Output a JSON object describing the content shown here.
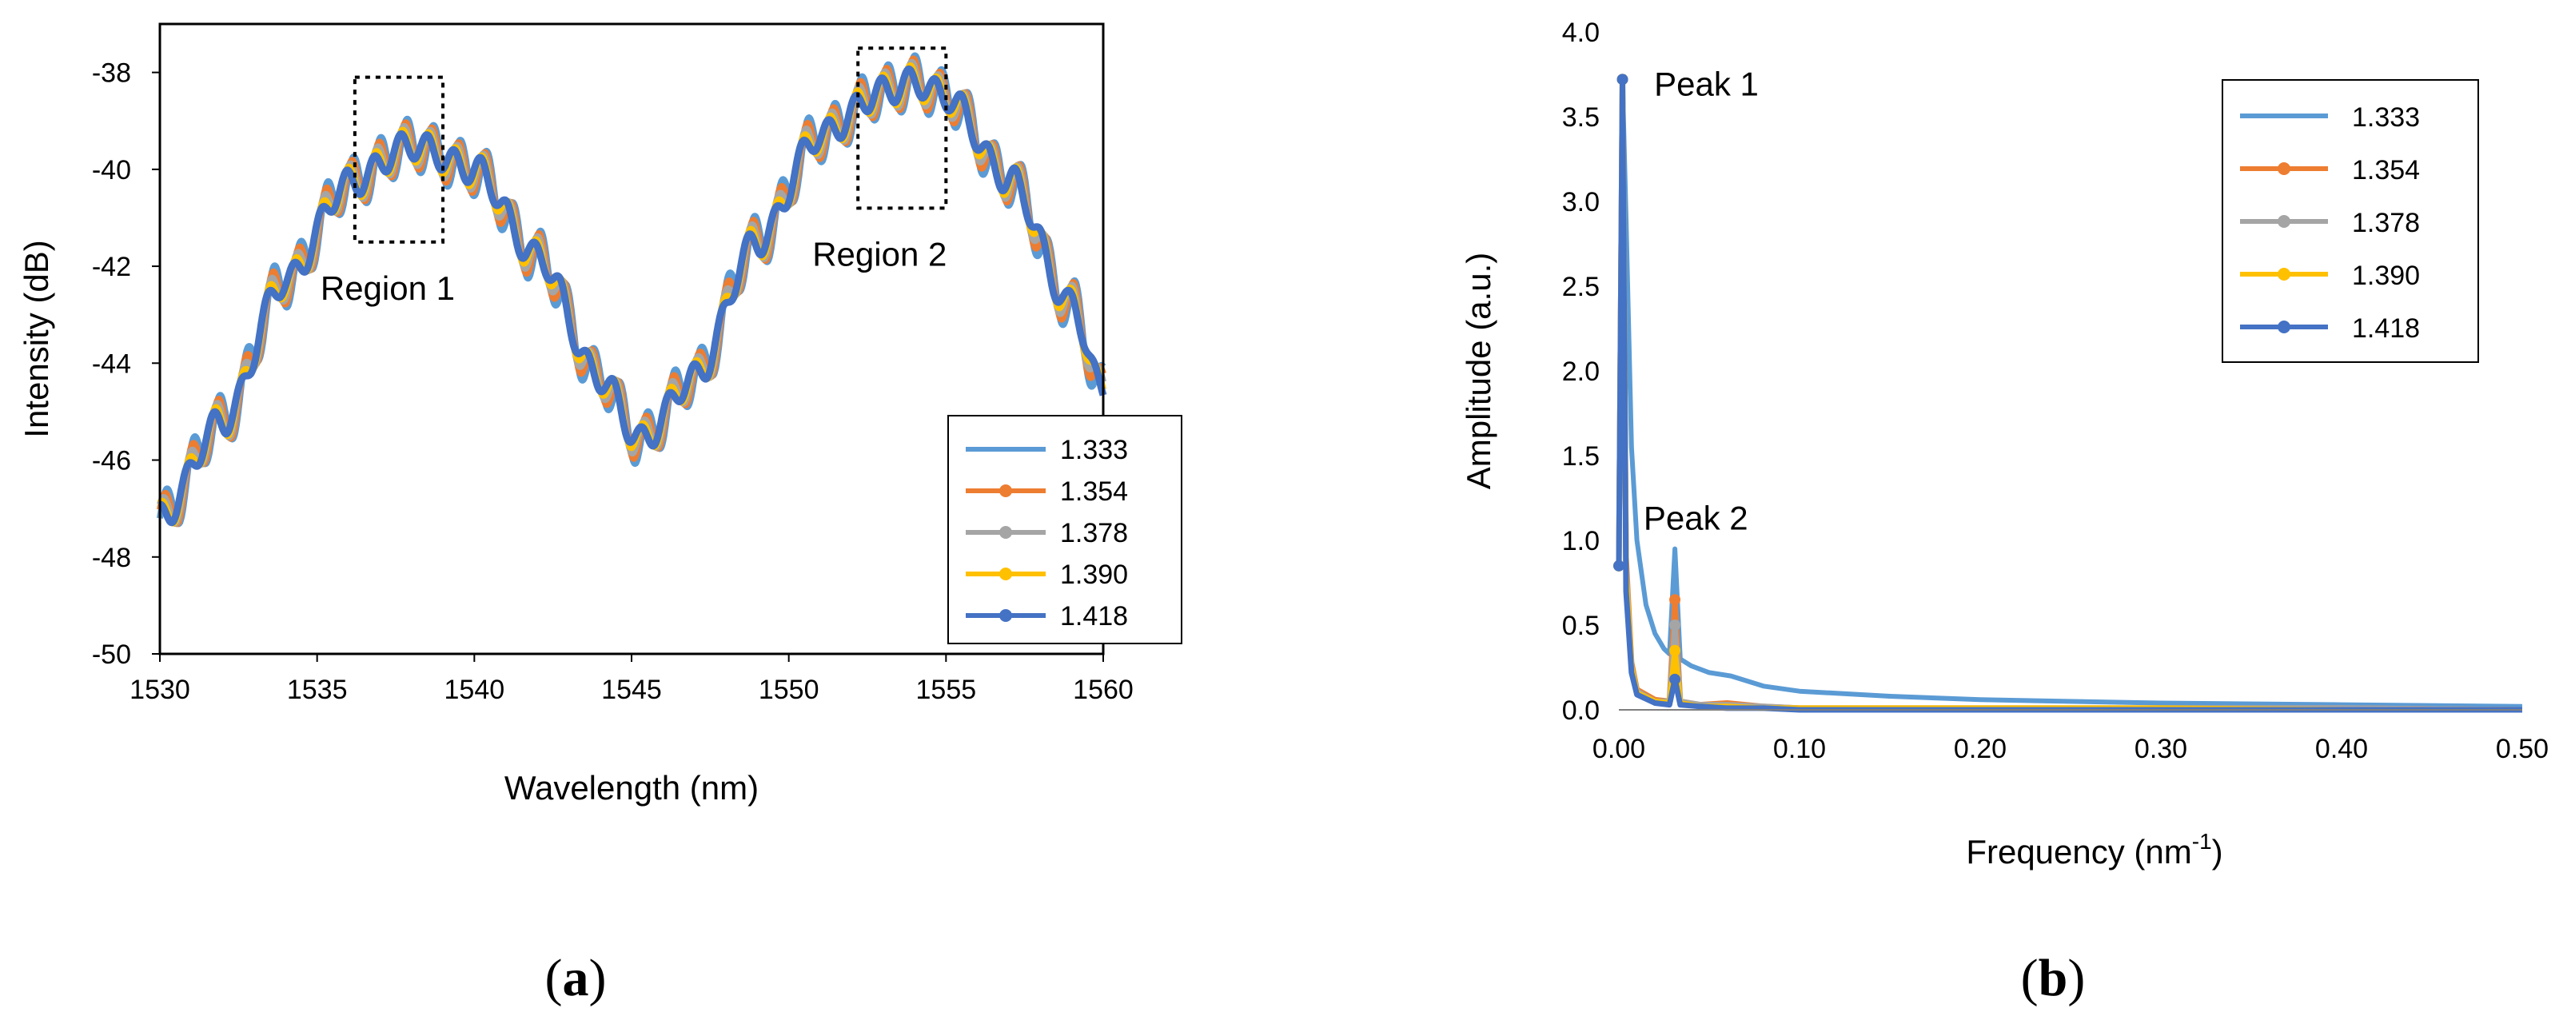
{
  "chart_data": [
    {
      "type": "line",
      "panel": "a",
      "caption_open": "(",
      "caption_letter": "a",
      "caption_close": ")",
      "xlabel": "Wavelength (nm)",
      "ylabel": "Intensity (dB)",
      "xlim": [
        1530,
        1560
      ],
      "ylim": [
        -50,
        -37
      ],
      "xticks": [
        1530,
        1535,
        1540,
        1545,
        1550,
        1555,
        1560
      ],
      "yticks": [
        -50,
        -48,
        -46,
        -44,
        -42,
        -40,
        -38
      ],
      "legend_position": "bottom-right",
      "series": [
        {
          "name": "1.333",
          "color": "#5B9BD5",
          "offset": 0.0
        },
        {
          "name": "1.354",
          "color": "#ED7D31",
          "offset": 0.12
        },
        {
          "name": "1.378",
          "color": "#A5A5A5",
          "offset": 0.24
        },
        {
          "name": "1.390",
          "color": "#FFC000",
          "offset": 0.36
        },
        {
          "name": "1.418",
          "color": "#4472C4",
          "offset": 0.48
        }
      ],
      "envelope": {
        "x": [
          1530,
          1532,
          1534,
          1536,
          1538,
          1540,
          1542,
          1544,
          1545.3,
          1547,
          1549,
          1551,
          1553,
          1554,
          1555,
          1557,
          1559,
          1560
        ],
        "y": [
          -47.2,
          -45.2,
          -42.3,
          -40.3,
          -39.5,
          -40.0,
          -41.8,
          -44.3,
          -45.6,
          -44.3,
          -41.5,
          -39.3,
          -38.4,
          -38.2,
          -38.5,
          -40.2,
          -42.8,
          -44.6
        ]
      },
      "ripple_amplitude_db": 0.55,
      "ripple_period_nm": 0.85,
      "regions": [
        {
          "label": "Region 1",
          "x": [
            1536.2,
            1539.0
          ],
          "y": [
            -41.5,
            -38.1
          ]
        },
        {
          "label": "Region 2",
          "x": [
            1552.2,
            1555.0
          ],
          "y": [
            -40.8,
            -37.5
          ]
        }
      ]
    },
    {
      "type": "line",
      "panel": "b",
      "caption_open": "(",
      "caption_letter": "b",
      "caption_close": ")",
      "xlabel": "Frequency (nm",
      "xlabel_sup": "-1",
      "xlabel_tail": ")",
      "ylabel": "Amplitude (a.u.)",
      "xlim": [
        0,
        0.5
      ],
      "ylim": [
        0,
        4.0
      ],
      "xticks": [
        "0.00",
        "0.10",
        "0.20",
        "0.30",
        "0.40",
        "0.50"
      ],
      "yticks": [
        "0.0",
        "0.5",
        "1.0",
        "1.5",
        "2.0",
        "2.5",
        "3.0",
        "3.5",
        "4.0"
      ],
      "legend_position": "top-right",
      "annotations": [
        {
          "text": "Peak 1",
          "x": 0.016,
          "y": 3.72
        },
        {
          "text": "Peak 2",
          "x": 0.011,
          "y": 1.14
        }
      ],
      "series": [
        {
          "name": "1.333",
          "color": "#5B9BD5",
          "peak1": 3.72,
          "peak2": 0.95,
          "x": [
            0.0,
            0.002,
            0.004,
            0.007,
            0.01,
            0.015,
            0.02,
            0.025,
            0.028,
            0.031,
            0.034,
            0.04,
            0.05,
            0.062,
            0.08,
            0.1,
            0.15,
            0.2,
            0.3,
            0.4,
            0.5
          ],
          "y": [
            0.85,
            3.72,
            2.9,
            1.55,
            1.0,
            0.62,
            0.45,
            0.36,
            0.33,
            0.95,
            0.3,
            0.26,
            0.22,
            0.2,
            0.14,
            0.11,
            0.08,
            0.06,
            0.04,
            0.03,
            0.02
          ]
        },
        {
          "name": "1.354",
          "color": "#ED7D31",
          "peak1": 3.72,
          "peak2": 0.65,
          "x": [
            0.0,
            0.002,
            0.004,
            0.007,
            0.01,
            0.02,
            0.028,
            0.031,
            0.034,
            0.045,
            0.06,
            0.08,
            0.1,
            0.2,
            0.3,
            0.4,
            0.5
          ],
          "y": [
            0.85,
            3.72,
            0.9,
            0.28,
            0.12,
            0.06,
            0.05,
            0.65,
            0.05,
            0.03,
            0.04,
            0.02,
            0.01,
            0.01,
            0.01,
            0.01,
            0.0
          ]
        },
        {
          "name": "1.378",
          "color": "#A5A5A5",
          "peak1": 3.72,
          "peak2": 0.5,
          "x": [
            0.0,
            0.002,
            0.004,
            0.007,
            0.01,
            0.02,
            0.028,
            0.031,
            0.034,
            0.045,
            0.06,
            0.08,
            0.1,
            0.2,
            0.3,
            0.4,
            0.5
          ],
          "y": [
            0.85,
            3.72,
            0.85,
            0.26,
            0.11,
            0.05,
            0.05,
            0.5,
            0.05,
            0.03,
            0.03,
            0.02,
            0.01,
            0.01,
            0.01,
            0.01,
            0.0
          ]
        },
        {
          "name": "1.390",
          "color": "#FFC000",
          "peak1": 3.72,
          "peak2": 0.35,
          "x": [
            0.0,
            0.002,
            0.004,
            0.007,
            0.01,
            0.02,
            0.028,
            0.031,
            0.034,
            0.045,
            0.06,
            0.08,
            0.1,
            0.2,
            0.3,
            0.4,
            0.5
          ],
          "y": [
            0.85,
            3.72,
            0.8,
            0.25,
            0.1,
            0.05,
            0.04,
            0.35,
            0.04,
            0.02,
            0.02,
            0.01,
            0.01,
            0.01,
            0.01,
            0.0,
            0.0
          ]
        },
        {
          "name": "1.418",
          "color": "#4472C4",
          "peak1": 3.72,
          "peak2": 0.18,
          "x": [
            0.0,
            0.002,
            0.004,
            0.007,
            0.01,
            0.02,
            0.028,
            0.031,
            0.034,
            0.045,
            0.06,
            0.08,
            0.1,
            0.2,
            0.3,
            0.4,
            0.5
          ],
          "y": [
            0.85,
            3.72,
            0.7,
            0.22,
            0.09,
            0.04,
            0.03,
            0.18,
            0.03,
            0.02,
            0.01,
            0.01,
            0.0,
            0.0,
            0.0,
            0.0,
            0.0
          ]
        }
      ]
    }
  ]
}
